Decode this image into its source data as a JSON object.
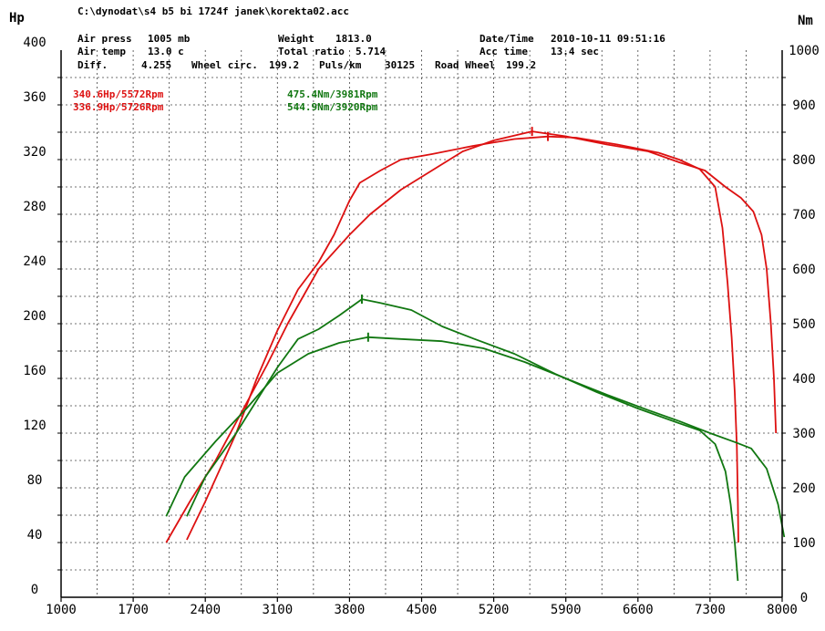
{
  "header": {
    "file_path": "C:\\dynodat\\s4 b5 bi 1724f janek\\korekta02.acc",
    "row1": {
      "air_press_label": "Air press",
      "air_press_value": "1005 mb",
      "weight_label": "Weight",
      "weight_value": "1813.0",
      "datetime_label": "Date/Time",
      "datetime_value": "2010-10-11 09:51:16"
    },
    "row2": {
      "air_temp_label": "Air temp",
      "air_temp_value": "13.0 c",
      "total_ratio_label": "Total ratio",
      "total_ratio_value": "5.714",
      "acc_time_label": "Acc time",
      "acc_time_value": "13.4 sec"
    },
    "row3": {
      "diff_label": "Diff.",
      "diff_value": "4.255",
      "wheel_circ_label": "Wheel circ.",
      "wheel_circ_value": "199.2",
      "puls_label": "Puls/km",
      "puls_value": "30125",
      "road_wheel_label": "Road Wheel",
      "road_wheel_value": "199.2"
    }
  },
  "peaks": {
    "hp1": "340.6Hp/5572Rpm",
    "hp2": "336.9Hp/5726Rpm",
    "nm1": "475.4Nm/3981Rpm",
    "nm2": "544.9Nm/3920Rpm"
  },
  "colors": {
    "power": "#dd1111",
    "torque": "#117711",
    "grid": "#444444"
  },
  "chart_data": {
    "type": "line",
    "left_axis_label": "Hp",
    "right_axis_label": "Nm",
    "x_range": [
      1000,
      8000
    ],
    "x_ticks": [
      1000,
      1700,
      2400,
      3100,
      3800,
      4500,
      5200,
      5900,
      6600,
      7300,
      8000
    ],
    "y_left_range": [
      0,
      400
    ],
    "y_left_ticks": [
      0,
      40,
      80,
      120,
      160,
      200,
      240,
      280,
      320,
      360,
      400
    ],
    "y_right_range": [
      0,
      1000
    ],
    "y_right_ticks": [
      0,
      100,
      200,
      300,
      400,
      500,
      600,
      700,
      800,
      900,
      1000
    ],
    "grid": true,
    "series": [
      {
        "name": "340.6Hp/5572Rpm",
        "axis": "left",
        "color": "#dd1111",
        "points": [
          [
            2020,
            40
          ],
          [
            2250,
            70
          ],
          [
            2500,
            100
          ],
          [
            2750,
            135
          ],
          [
            3000,
            170
          ],
          [
            3200,
            200
          ],
          [
            3500,
            240
          ],
          [
            3800,
            265
          ],
          [
            4000,
            280
          ],
          [
            4300,
            298
          ],
          [
            4600,
            312
          ],
          [
            4900,
            326
          ],
          [
            5200,
            334
          ],
          [
            5572,
            340.6
          ],
          [
            5900,
            337
          ],
          [
            6300,
            331
          ],
          [
            6700,
            326
          ],
          [
            7000,
            318
          ],
          [
            7250,
            312
          ],
          [
            7450,
            300
          ],
          [
            7600,
            292
          ],
          [
            7720,
            282
          ],
          [
            7800,
            265
          ],
          [
            7850,
            240
          ],
          [
            7890,
            200
          ],
          [
            7920,
            160
          ],
          [
            7940,
            120
          ]
        ]
      },
      {
        "name": "336.9Hp/5726Rpm",
        "axis": "left",
        "color": "#dd1111",
        "points": [
          [
            2220,
            42
          ],
          [
            2400,
            70
          ],
          [
            2700,
            120
          ],
          [
            2900,
            160
          ],
          [
            3100,
            195
          ],
          [
            3300,
            225
          ],
          [
            3500,
            245
          ],
          [
            3650,
            265
          ],
          [
            3800,
            290
          ],
          [
            3900,
            303
          ],
          [
            4100,
            312
          ],
          [
            4300,
            320
          ],
          [
            4600,
            324
          ],
          [
            5000,
            330
          ],
          [
            5400,
            335
          ],
          [
            5726,
            336.9
          ],
          [
            6000,
            336
          ],
          [
            6400,
            331
          ],
          [
            6800,
            325
          ],
          [
            7000,
            320
          ],
          [
            7200,
            313
          ],
          [
            7350,
            300
          ],
          [
            7420,
            270
          ],
          [
            7470,
            230
          ],
          [
            7510,
            190
          ],
          [
            7540,
            150
          ],
          [
            7560,
            110
          ],
          [
            7570,
            70
          ],
          [
            7575,
            40
          ]
        ]
      },
      {
        "name": "475.4Nm/3981Rpm",
        "axis": "right",
        "color": "#117711",
        "points": [
          [
            2020,
            148
          ],
          [
            2200,
            220
          ],
          [
            2500,
            285
          ],
          [
            2800,
            345
          ],
          [
            3100,
            410
          ],
          [
            3400,
            445
          ],
          [
            3700,
            465
          ],
          [
            3981,
            475.4
          ],
          [
            4300,
            472
          ],
          [
            4700,
            468
          ],
          [
            5100,
            455
          ],
          [
            5500,
            430
          ],
          [
            5900,
            400
          ],
          [
            6300,
            370
          ],
          [
            6700,
            342
          ],
          [
            7000,
            322
          ],
          [
            7300,
            300
          ],
          [
            7550,
            283
          ],
          [
            7700,
            272
          ],
          [
            7850,
            235
          ],
          [
            7960,
            170
          ],
          [
            8020,
            110
          ]
        ]
      },
      {
        "name": "544.9Nm/3920Rpm",
        "axis": "right",
        "color": "#117711",
        "points": [
          [
            2220,
            148
          ],
          [
            2400,
            220
          ],
          [
            2700,
            300
          ],
          [
            2900,
            360
          ],
          [
            3100,
            420
          ],
          [
            3300,
            472
          ],
          [
            3500,
            490
          ],
          [
            3700,
            515
          ],
          [
            3920,
            544.9
          ],
          [
            4100,
            538
          ],
          [
            4400,
            525
          ],
          [
            4700,
            495
          ],
          [
            5000,
            473
          ],
          [
            5400,
            445
          ],
          [
            5800,
            408
          ],
          [
            6200,
            375
          ],
          [
            6600,
            345
          ],
          [
            7000,
            318
          ],
          [
            7200,
            305
          ],
          [
            7350,
            280
          ],
          [
            7450,
            230
          ],
          [
            7500,
            170
          ],
          [
            7540,
            100
          ],
          [
            7570,
            30
          ]
        ]
      }
    ]
  }
}
